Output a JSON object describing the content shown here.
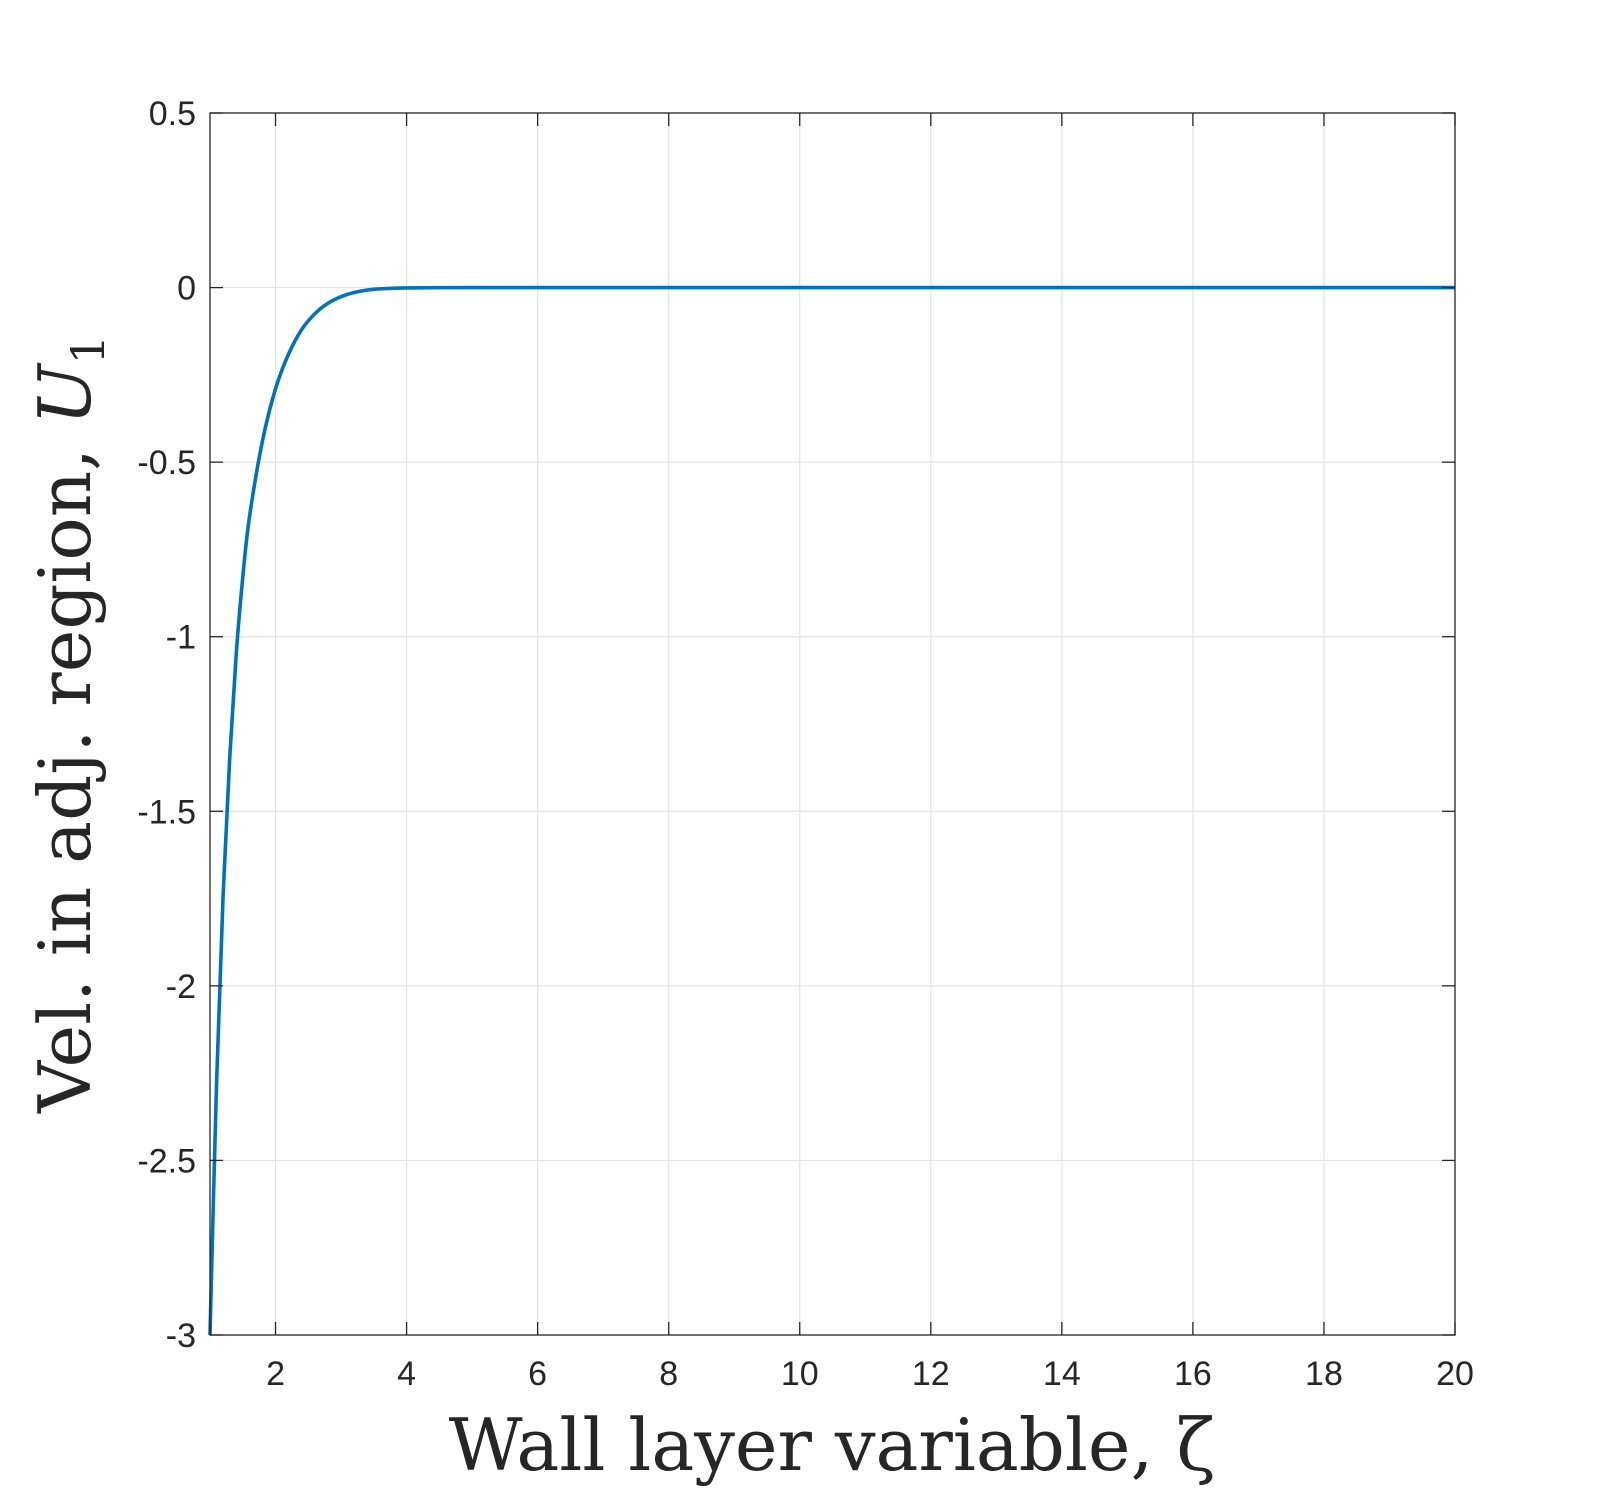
{
  "chart_data": {
    "type": "line",
    "xlabel": "Wall layer variable, ζ",
    "ylabel_main": "Vel. in adj. region, ",
    "ylabel_symbol": "U",
    "ylabel_subscript": "1",
    "xlim": [
      1,
      20
    ],
    "ylim": [
      -3,
      0.5
    ],
    "xticks": [
      2,
      4,
      6,
      8,
      10,
      12,
      14,
      16,
      18,
      20
    ],
    "xtick_labels": [
      "2",
      "4",
      "6",
      "8",
      "10",
      "12",
      "14",
      "16",
      "18",
      "20"
    ],
    "yticks": [
      -3,
      -2.5,
      -2,
      -1.5,
      -1,
      -0.5,
      0,
      0.5
    ],
    "ytick_labels": [
      "-3",
      "-2.5",
      "-2",
      "-1.5",
      "-1",
      "-0.5",
      "0",
      "0.5"
    ],
    "grid": true,
    "series": [
      {
        "color": "#0072BD",
        "x": [
          1.0,
          1.1,
          1.2,
          1.3,
          1.4,
          1.5,
          1.6,
          1.8,
          2.0,
          2.2,
          2.4,
          2.6,
          2.8,
          3.0,
          3.2,
          3.5,
          4.0,
          5.0,
          6.0,
          8.0,
          10.0,
          12.0,
          14.0,
          16.0,
          18.0,
          20.0
        ],
        "y": [
          -3.0,
          -2.28,
          -1.74,
          -1.35,
          -1.05,
          -0.83,
          -0.66,
          -0.44,
          -0.29,
          -0.19,
          -0.12,
          -0.075,
          -0.045,
          -0.026,
          -0.014,
          -0.005,
          -0.001,
          0.0,
          0.0,
          0.0,
          0.0,
          0.0,
          0.0,
          0.0,
          0.0,
          0.0
        ]
      }
    ]
  }
}
